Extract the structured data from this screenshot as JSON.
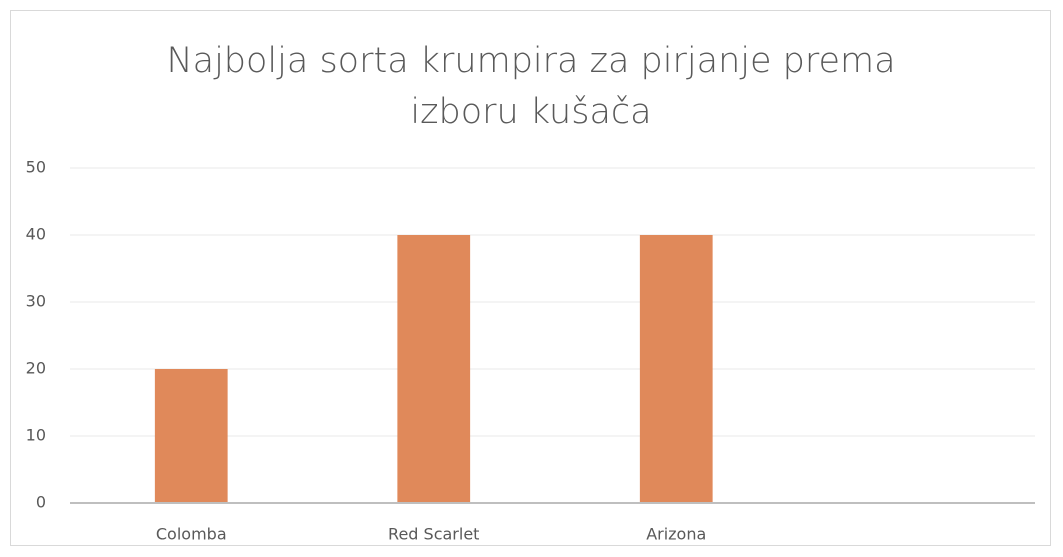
{
  "chart_data": {
    "type": "bar",
    "title": "Najbolja sorta krumpira za pirjanje prema izboru kušača",
    "categories": [
      "Colomba",
      "Red Scarlet",
      "Arizona",
      null
    ],
    "values": [
      20,
      40,
      40,
      null
    ],
    "color": "#e0895a",
    "ylim": [
      0,
      50
    ],
    "yticks": [
      0,
      10,
      20,
      30,
      40,
      50
    ],
    "grid": true
  }
}
